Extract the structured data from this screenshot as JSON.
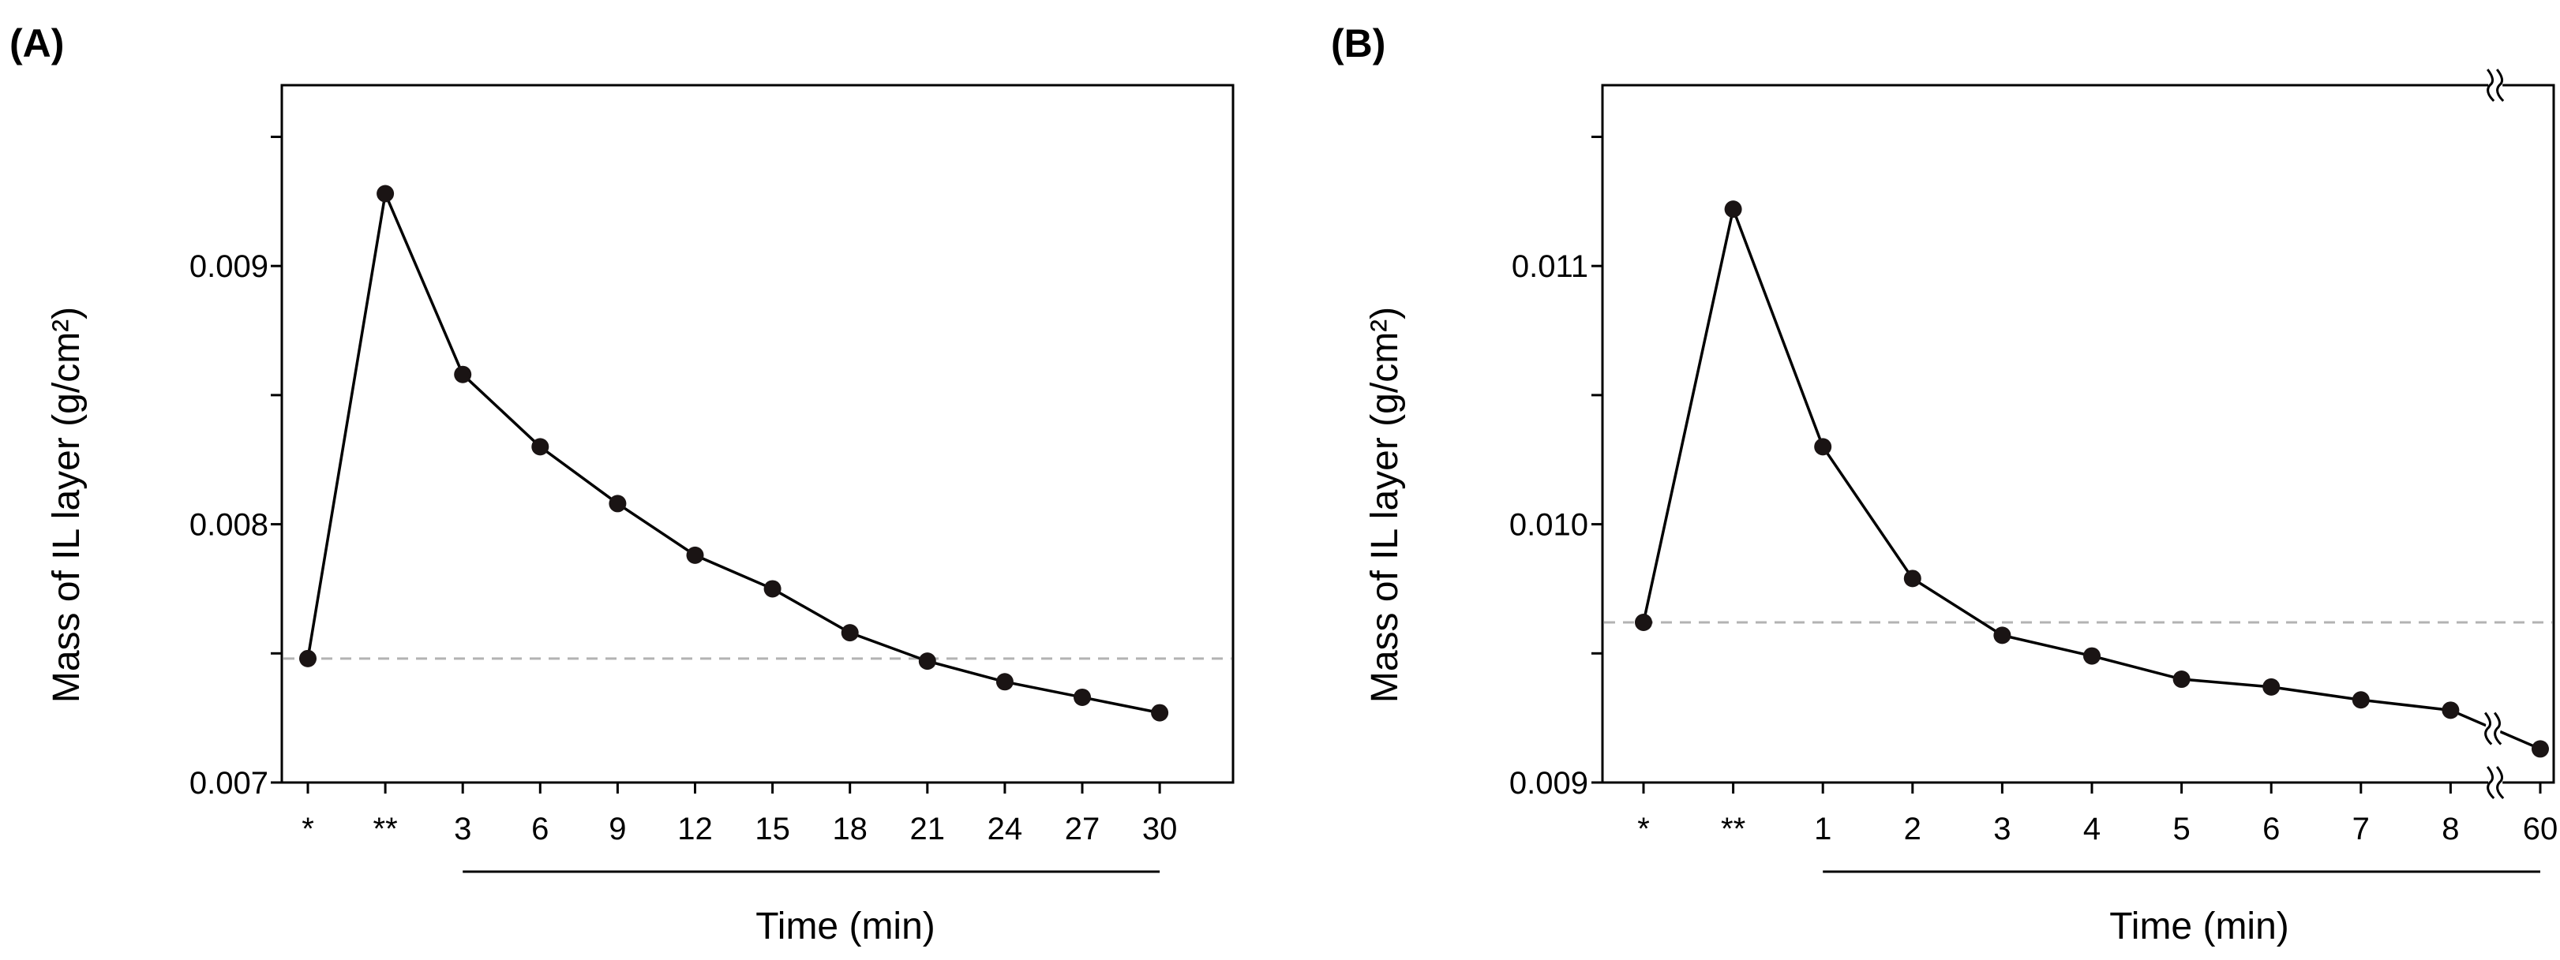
{
  "chart_data": [
    {
      "type": "line",
      "panel_label": "(A)",
      "xlabel": "Time (min)",
      "ylabel": "Mass of IL layer (g/cm²)",
      "categories": [
        "*",
        "**",
        "3",
        "6",
        "9",
        "12",
        "15",
        "18",
        "21",
        "24",
        "27",
        "30"
      ],
      "values": [
        0.00748,
        0.00928,
        0.00858,
        0.0083,
        0.00808,
        0.00788,
        0.00775,
        0.00758,
        0.00747,
        0.00739,
        0.00733,
        0.00727
      ],
      "ylim": [
        0.007,
        0.0097
      ],
      "yticks": [
        0.007,
        0.008,
        0.009
      ],
      "ytick_labels": [
        "0.007",
        "0.008",
        "0.009"
      ],
      "reference_line": 0.00748,
      "time_bracket": [
        "3",
        "30"
      ],
      "axis_break": null,
      "colors": {
        "line": "#000000",
        "marker": "#1a1414",
        "reference": "#b3b3b3"
      }
    },
    {
      "type": "line",
      "panel_label": "(B)",
      "xlabel": "Time (min)",
      "ylabel": "Mass of IL layer (g/cm²)",
      "categories": [
        "*",
        "**",
        "1",
        "2",
        "3",
        "4",
        "5",
        "6",
        "7",
        "8",
        "60"
      ],
      "values": [
        0.00962,
        0.01122,
        0.0103,
        0.00979,
        0.00957,
        0.00949,
        0.0094,
        0.00937,
        0.00932,
        0.00928,
        0.00913
      ],
      "ylim": [
        0.009,
        0.0117
      ],
      "yticks": [
        0.009,
        0.01,
        0.011
      ],
      "ytick_labels": [
        "0.009",
        "0.010",
        "0.011"
      ],
      "reference_line": 0.00962,
      "time_bracket": [
        "1",
        "60"
      ],
      "axis_break": {
        "between": [
          "8",
          "60"
        ]
      },
      "colors": {
        "line": "#000000",
        "marker": "#1a1414",
        "reference": "#b3b3b3"
      }
    }
  ]
}
